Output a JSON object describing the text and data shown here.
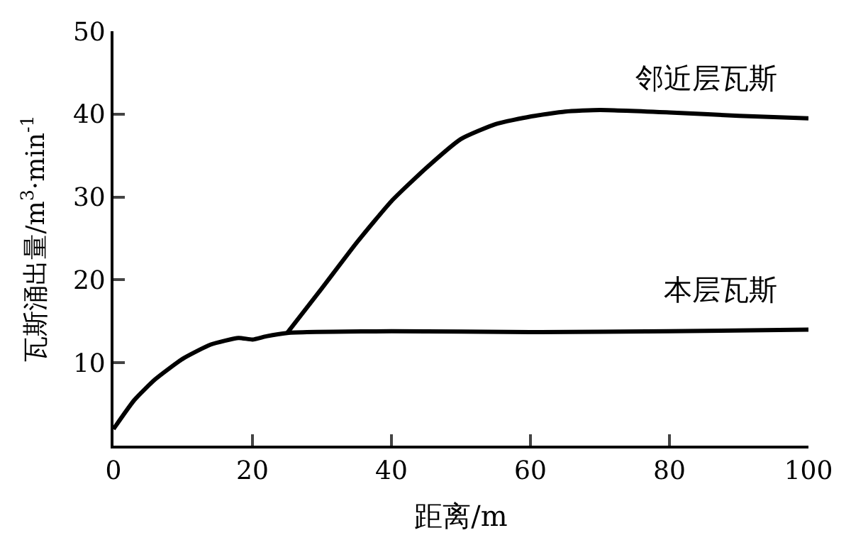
{
  "chart_data": {
    "type": "line",
    "xlabel": "距离/m",
    "ylabel": "瓦斯涌出量/m$^{3}$·min$^{-1}$",
    "xlim": [
      0,
      100
    ],
    "xticks": [
      0,
      20,
      40,
      60,
      80,
      100
    ],
    "ylim": [
      0,
      50
    ],
    "yticks": [
      10,
      20,
      30,
      40,
      50
    ],
    "legend": false,
    "marker": "none",
    "line_style": "solid",
    "series": [
      {
        "name": "本层瓦斯",
        "color": "#000000",
        "x": [
          0,
          3,
          6,
          10,
          14,
          18,
          20,
          22,
          25,
          40,
          60,
          80,
          100
        ],
        "values": [
          2,
          5.5,
          8,
          10.5,
          12.2,
          13,
          12.8,
          13.2,
          13.6,
          13.8,
          13.7,
          13.8,
          14
        ]
      },
      {
        "name": "邻近层瓦斯",
        "color": "#000000",
        "x": [
          25,
          30,
          35,
          40,
          45,
          50,
          55,
          60,
          65,
          70,
          80,
          90,
          100
        ],
        "values": [
          13.6,
          19,
          24.5,
          29.5,
          33.5,
          37,
          38.8,
          39.7,
          40.3,
          40.5,
          40.2,
          39.8,
          39.5
        ]
      }
    ]
  }
}
